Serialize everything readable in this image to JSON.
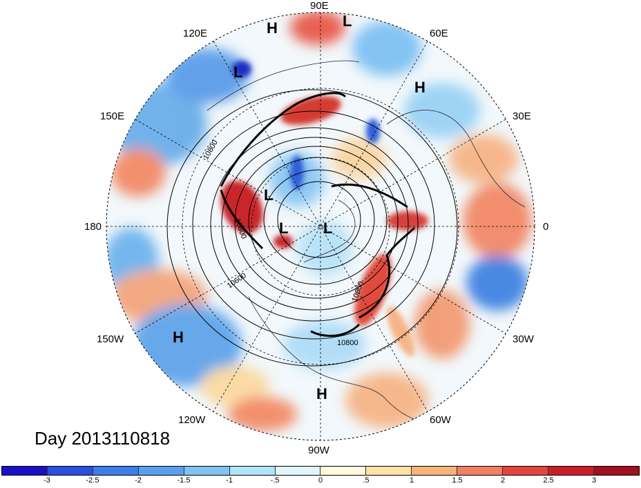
{
  "longitude_labels": [
    "90E",
    "60E",
    "30E",
    "0",
    "30W",
    "60W",
    "90W",
    "120W",
    "150W",
    "180",
    "150E",
    "120E"
  ],
  "pressure_systems": [
    {
      "kind": "H",
      "region": "siberia-north"
    },
    {
      "kind": "L",
      "region": "arctic-russia"
    },
    {
      "kind": "L",
      "region": "east-siberia"
    },
    {
      "kind": "H",
      "region": "scandinavia"
    },
    {
      "kind": "L",
      "region": "bering"
    },
    {
      "kind": "L",
      "region": "beaufort"
    },
    {
      "kind": "L",
      "region": "greenland-north"
    },
    {
      "kind": "H",
      "region": "central-pacific"
    },
    {
      "kind": "H",
      "region": "gulf-of-mexico"
    }
  ],
  "contour_labels": [
    "10800",
    "10800",
    "10600",
    "10800",
    "10600"
  ],
  "day_label": "Day 2013110818",
  "colorbar": {
    "ticks": [
      "-3",
      "-2.5",
      "-2",
      "-1.5",
      "-1",
      "-.5",
      "0",
      ".5",
      "1",
      "1.5",
      "2",
      "2.5",
      "3"
    ],
    "colors": [
      "#1a10c8",
      "#2a4fe0",
      "#3d7ee8",
      "#5aa0ef",
      "#7fc4f5",
      "#aee6f8",
      "#e0f6fb",
      "#fffbdc",
      "#fde3a3",
      "#f7b37a",
      "#f08060",
      "#e4463e",
      "#c81f2a",
      "#a0101e"
    ]
  }
}
